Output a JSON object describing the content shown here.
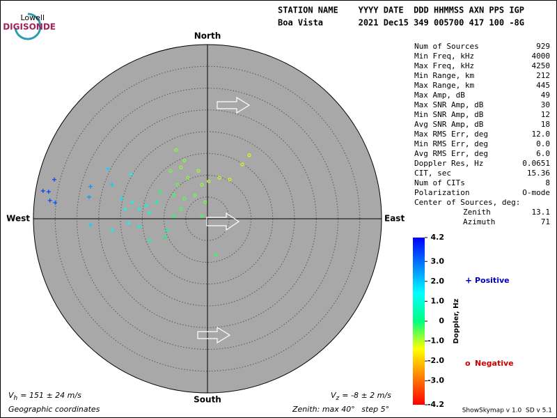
{
  "logo": {
    "top": "Lowell",
    "bottom": "DIGISONDE"
  },
  "header": {
    "line1": "STATION NAME    YYYY DATE  DDD HHMMSS AXN PPS IGP",
    "line2": "Boa Vista       2021 Dec15 349 005700 417 100 -8G"
  },
  "compass": {
    "north": "North",
    "south": "South",
    "east": "East",
    "west": "West"
  },
  "stats": [
    [
      "Num of Sources",
      "929"
    ],
    [
      "Min Freq, kHz",
      "4000"
    ],
    [
      "Max Freq, kHz",
      "4250"
    ],
    [
      "Min Range, km",
      "212"
    ],
    [
      "Max Range, km",
      "445"
    ],
    [
      "Max Amp, dB",
      "49"
    ],
    [
      "Max SNR Amp, dB",
      "30"
    ],
    [
      "Min SNR Amp, dB",
      "12"
    ],
    [
      "Avg SNR Amp, dB",
      "18"
    ],
    [
      "Max RMS Err, deg",
      "12.0"
    ],
    [
      "Min RMS Err, deg",
      "0.0"
    ],
    [
      "Avg RMS Err, deg",
      "6.0"
    ],
    [
      "Doppler Res, Hz",
      "0.0651"
    ],
    [
      "CIT, sec",
      "15.36"
    ],
    [
      "Num of CITs",
      "8"
    ],
    [
      "Polarization",
      "O-mode"
    ]
  ],
  "center": {
    "title": "Center of Sources, deg:",
    "rows": [
      [
        "Zenith",
        "13.1"
      ],
      [
        "Azimuth",
        "71"
      ]
    ]
  },
  "colorbar": {
    "label": "Doppler, Hz",
    "lim": [
      -4.2,
      4.2
    ],
    "ticks": [
      4.2,
      {
        "value": 3,
        "label": "3.0"
      },
      {
        "value": 2,
        "label": "2.0"
      },
      {
        "value": 1,
        "label": "1.0"
      },
      0,
      {
        "value": -1,
        "label": "-1.0"
      },
      {
        "value": -2,
        "label": "-2.0"
      },
      {
        "value": -3,
        "label": "-3.0"
      },
      -4.2
    ],
    "colors": [
      "#0000ff",
      "#0080ff",
      "#00ffff",
      "#00ff80",
      "#ffff00",
      "#ff8000",
      "#ff0000"
    ]
  },
  "legend": {
    "positive": {
      "symbol": "+",
      "label": "Positive",
      "color": "#0000c0"
    },
    "negative": {
      "symbol": "o",
      "label": "Negative",
      "color": "#d00000"
    }
  },
  "footer": {
    "vh": {
      "v": "V",
      "sub": "h",
      "rest": "= 151 ± 24 m/s"
    },
    "vz": {
      "v": "V",
      "sub": "z",
      "rest": "= -8 ± 2 m/s"
    },
    "coords": "Geographic coordinates",
    "zenith_text": "Zenith: max",
    "zenith_max": {
      "value": 40,
      "label": "40°"
    },
    "step_text": "step",
    "zenith_step": {
      "value": 5,
      "label": "5°"
    },
    "version": "ShowSkymap v 1.0  SD v 5.1"
  },
  "sources": {
    "x": [
      -35.2,
      -37.8,
      -36.5,
      -36.2,
      -35,
      -26.9,
      -27.2,
      -22.9,
      -22,
      -19.7,
      -18.9,
      -17.3,
      -15.7,
      -14.1,
      -13.3,
      -11.7,
      -18.1,
      -26.9,
      -22,
      -15.7,
      -9.3,
      -9.8,
      -13.3,
      -7.7,
      -17.6,
      -8.5,
      -6.1,
      -4.5,
      -2.1,
      -1.3,
      0.3,
      2.7,
      5.1,
      8,
      9.6,
      -6.9,
      -5.3,
      -2.9,
      -0.5,
      -6.1,
      -7.7,
      -10.9,
      1.9,
      -1.3,
      -7.2,
      -5.3
    ],
    "y": [
      9,
      6.4,
      6.2,
      4.2,
      3.7,
      7.4,
      5,
      11.5,
      7.8,
      4.6,
      2.2,
      3.8,
      2.2,
      3,
      1.4,
      3.8,
      -1,
      -1.4,
      -2.6,
      -1.8,
      -2.6,
      -4.2,
      -5,
      0.6,
      10.2,
      11,
      11.8,
      9.4,
      11,
      7.8,
      8.6,
      9.4,
      9,
      12.5,
      14.6,
      7.8,
      4.6,
      5.4,
      3.8,
      2.2,
      5.4,
      6.2,
      -8.3,
      0.6,
      15.8,
      13.4
    ],
    "doppler": [
      3.5,
      3.5,
      3.5,
      3.4,
      3.2,
      2.6,
      2.5,
      1.8,
      1.9,
      1.6,
      1.3,
      1.2,
      1,
      0.9,
      0.8,
      0.5,
      1.4,
      1.8,
      1.5,
      1,
      0.2,
      0.1,
      0.6,
      -0.2,
      1.3,
      -0.6,
      -0.8,
      -0.7,
      -0.9,
      -0.8,
      -0.9,
      -1,
      -1.1,
      -1.1,
      -1.2,
      -0.5,
      -0.5,
      -0.6,
      -0.6,
      -0.4,
      -0.3,
      -0.2,
      -0.3,
      -0.4,
      -0.7,
      -0.7
    ]
  }
}
